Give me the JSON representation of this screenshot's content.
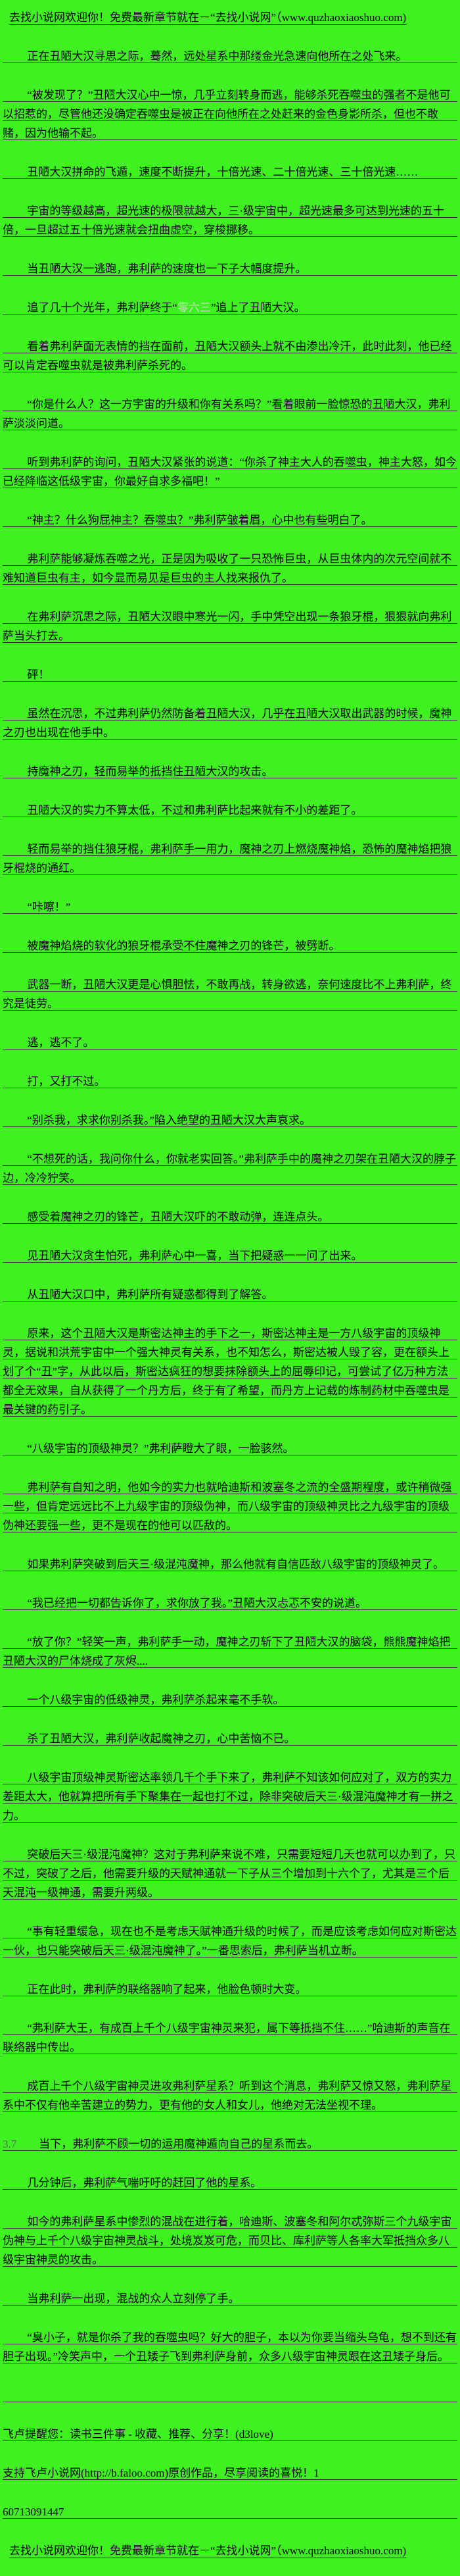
{
  "page": {
    "colors": {
      "background": "#3ff121",
      "text": "#000000",
      "rule_line": "#2e2e2e",
      "watermark_text": "#ccdccc",
      "stray_number_text": "#5a6a5a"
    }
  },
  "header": {
    "site_notice": "去找小说网欢迎你！免费最新章节就在－“去找小说网”（www.quzhaoxiaoshuo.com)"
  },
  "content": {
    "paragraphs": [
      {
        "indent": true,
        "text": "正在丑陋大汉寻思之际，蓦然，远处星系中那缕金光急速向他所在之处飞来。"
      },
      {
        "indent": true,
        "text": "“被发现了？”丑陋大汉心中一惊，几乎立刻转身而逃，能够杀死吞噬虫的强者不是他可以招惹的，尽管他还没确定吞噬虫是被正在向他所在之处赶来的金色身影所杀，但也不敢赌，因为他输不起。"
      },
      {
        "indent": true,
        "text": "丑陋大汉拼命的飞遁，速度不断提升，十倍光速、二十倍光速、三十倍光速……"
      },
      {
        "indent": true,
        "text": "宇宙的等级越高，超光速的极限就越大，三·级宇宙中，超光速最多可达到光速的五十倍，一旦超过五十倍光速就会扭曲虚空，穿梭挪移。"
      },
      {
        "indent": true,
        "text": "当丑陋大汉一逃跑，弗利萨的速度也一下子大幅度提升。"
      },
      {
        "indent": true,
        "segments": [
          {
            "text": "追了几十个光年，弗利萨终于“"
          },
          {
            "text": "零六三",
            "color": "#ccdccc"
          },
          {
            "text": "”追上了丑陋大汉。"
          }
        ]
      },
      {
        "indent": true,
        "text": "看着弗利萨面无表情的挡在面前，丑陋大汉额头上就不由渗出冷汗，此时此刻，他已经可以肯定吞噬虫就是被弗利萨杀死的。"
      },
      {
        "indent": true,
        "text": "“你是什么人？这一方宇宙的升级和你有关系吗？”看着眼前一脸惊恐的丑陋大汉，弗利萨淡淡问道。"
      },
      {
        "indent": true,
        "text": "听到弗利萨的询问，丑陋大汉紧张的说道：“你杀了神主大人的吞噬虫，神主大怒，如今已经降临这低级宇宙，你最好自求多福吧！”"
      },
      {
        "indent": true,
        "text": "“神主？什么狗屁神主？吞噬虫？”弗利萨皱着眉，心中也有些明白了。"
      },
      {
        "indent": true,
        "text": "弗利萨能够凝炼吞噬之光，正是因为吸收了一只恐怖巨虫，从巨虫体内的次元空间就不难知道巨虫有主，如今显而易见是巨虫的主人找来报仇了。"
      },
      {
        "indent": true,
        "text": "在弗利萨沉思之际，丑陋大汉眼中寒光一闪，手中凭空出现一条狼牙棍，狠狠就向弗利萨当头打去。"
      },
      {
        "indent": true,
        "text": "砰！"
      },
      {
        "indent": true,
        "text": "虽然在沉思，不过弗利萨仍然防备着丑陋大汉，几乎在丑陋大汉取出武器的时候，魔神之刃也出现在他手中。"
      },
      {
        "indent": true,
        "text": "持魔神之刃，轻而易举的抵挡住丑陋大汉的攻击。"
      },
      {
        "indent": true,
        "text": "丑陋大汉的实力不算太低，不过和弗利萨比起来就有不小的差距了。"
      },
      {
        "indent": true,
        "text": "轻而易举的挡住狼牙棍，弗利萨手一用力，魔神之刃上燃烧魔神焰，恐怖的魔神焰把狼牙棍烧的通红。"
      },
      {
        "indent": true,
        "text": "“咔嚓！”"
      },
      {
        "indent": true,
        "text": "被魔神焰烧的软化的狼牙棍承受不住魔神之刃的锋芒，被劈断。"
      },
      {
        "indent": true,
        "text": "武器一断，丑陋大汉更是心惧胆怯，不敢再战，转身欲逃，奈何速度比不上弗利萨，终究是徒劳。"
      },
      {
        "indent": true,
        "text": "逃，逃不了。"
      },
      {
        "indent": true,
        "text": "打，又打不过。"
      },
      {
        "indent": true,
        "text": "“别杀我，求求你别杀我。”陷入绝望的丑陋大汉大声哀求。"
      },
      {
        "indent": true,
        "text": "“不想死的话，我问你什么，你就老实回答。”弗利萨手中的魔神之刃架在丑陋大汉的脖子边，冷冷狞笑。"
      },
      {
        "indent": true,
        "text": "感受着魔神之刃的锋芒，丑陋大汉吓的不敢动弹，连连点头。"
      },
      {
        "indent": true,
        "text": "见丑陋大汉贪生怕死，弗利萨心中一喜，当下把疑惑一一问了出来。"
      },
      {
        "indent": true,
        "text": "从丑陋大汉口中，弗利萨所有疑惑都得到了解答。"
      },
      {
        "indent": true,
        "text": "原来，这个丑陋大汉是斯密达神主的手下之一，斯密达神主是一方八级宇宙的顶级神灵，据说和洪荒宇宙中一个强大神灵有关系，也不知怎么，斯密达被人毁了容，更在额头上划了个“丑”字，从此以后，斯密达疯狂的想要抹除额头上的屈辱印记，可尝试了亿万种方法都全无效果，自从获得了一个丹方后，终于有了希望，而丹方上记载的炼制药材中吞噬虫是最关键的药引子。"
      },
      {
        "indent": true,
        "text": "“八级宇宙的顶级神灵？”弗利萨瞪大了眼，一脸骇然。"
      },
      {
        "indent": true,
        "text": "弗利萨有自知之明，他如今的实力也就哈迪斯和波塞冬之流的全盛期程度，或许稍微强一些，但肯定远远比不上九级宇宙的顶级伪神，而八级宇宙的顶级神灵比之九级宇宙的顶级伪神还要强一些，更不是现在的他可以匹敌的。"
      },
      {
        "indent": true,
        "text": "如果弗利萨突破到后天三·级混沌魔神，那么他就有自信匹敌八级宇宙的顶级神灵了。"
      },
      {
        "indent": true,
        "text": "“我已经把一切都告诉你了，求你放了我。”丑陋大汉忐忑不安的说道。"
      },
      {
        "indent": true,
        "text": "“放了你？”轻笑一声，弗利萨手一动，魔神之刃斩下了丑陋大汉的脑袋，熊熊魔神焰把丑陋大汉的尸体烧成了灰烬...."
      },
      {
        "indent": true,
        "text": "一个八级宇宙的低级神灵，弗利萨杀起来毫不手软。"
      },
      {
        "indent": true,
        "text": "杀了丑陋大汉，弗利萨收起魔神之刃，心中苦恼不已。"
      },
      {
        "indent": true,
        "text": "八级宇宙顶级神灵斯密达率领几千个手下来了，弗利萨不知该如何应对了，双方的实力差距太大，他就算把所有手下聚集在一起也打不过，除非突破后天三·级混沌魔神才有一拼之力。"
      },
      {
        "indent": true,
        "text": "突破后天三·级混沌魔神？这对于弗利萨来说不难，只需要短短几天也就可以办到了，只不过，突破了之后，他需要升级的天赋神通就一下子从三个增加到十六个了，尤其是三个后天混沌一级神通，需要升两级。"
      },
      {
        "indent": true,
        "text": "“事有轻重缓急，现在也不是考虑天赋神通升级的时候了，而是应该考虑如何应对斯密达一伙，也只能突破后天三·级混沌魔神了。”一番思索后，弗利萨当机立断。"
      },
      {
        "indent": true,
        "text": "正在此时，弗利萨的联络器响了起来，他脸色顿时大变。"
      },
      {
        "indent": true,
        "text": "“弗利萨大王，有成百上千个八级宇宙神灵来犯，属下等抵挡不住……”哈迪斯的声音在联络器中传出。"
      },
      {
        "indent": true,
        "text": "成百上千个八级宇宙神灵进攻弗利萨星系？听到这个消息，弗利萨又惊又怒，弗利萨星系中不仅有他辛苦建立的势力，更有他的女人和女儿，他绝对无法坐视不理。"
      },
      {
        "indent": false,
        "segments": [
          {
            "text": "3.7",
            "color": "#5a6a5a"
          },
          {
            "text": "　　当下，弗利萨不顾一切的运用魔神遁向自己的星系而去。"
          }
        ]
      },
      {
        "indent": true,
        "text": "几分钟后，弗利萨气喘吁吁的赶回了他的星系。"
      },
      {
        "indent": true,
        "text": "如今的弗利萨星系中惨烈的混战在进行着，哈迪斯、波塞冬和阿尔忒弥斯三个九级宇宙伪神与上千个八级宇宙神灵战斗，处境岌岌可危，而贝比、库利萨等人各率大军抵挡众多八级宇宙神灵的攻击。"
      },
      {
        "indent": true,
        "text": "当弗利萨一出现，混战的众人立刻停了手。"
      },
      {
        "indent": true,
        "text": "“臭小子，就是你杀了我的吞噬虫吗？好大的胆子，本以为你要当缩头乌龟，想不到还有胆子出现。”冷笑声中，一个丑矮子飞到弗利萨身前，众多八级宇宙神灵跟在这丑矮子身后。"
      },
      {
        "indent": false,
        "text": ""
      }
    ]
  },
  "footer": {
    "faloo_reminder": "飞卢提醒您：读书三件事 - 收藏、推荐、分享！(d3love)",
    "faloo_support_line": "支持飞卢小说网(http://b.faloo.com)原创作品，尽享阅读的喜悦！1",
    "faloo_book_id": "60713091447",
    "site_notice": "去找小说网欢迎你！免费最新章节就在－“去找小说网”（www.quzhaoxiaoshuo.com)"
  }
}
